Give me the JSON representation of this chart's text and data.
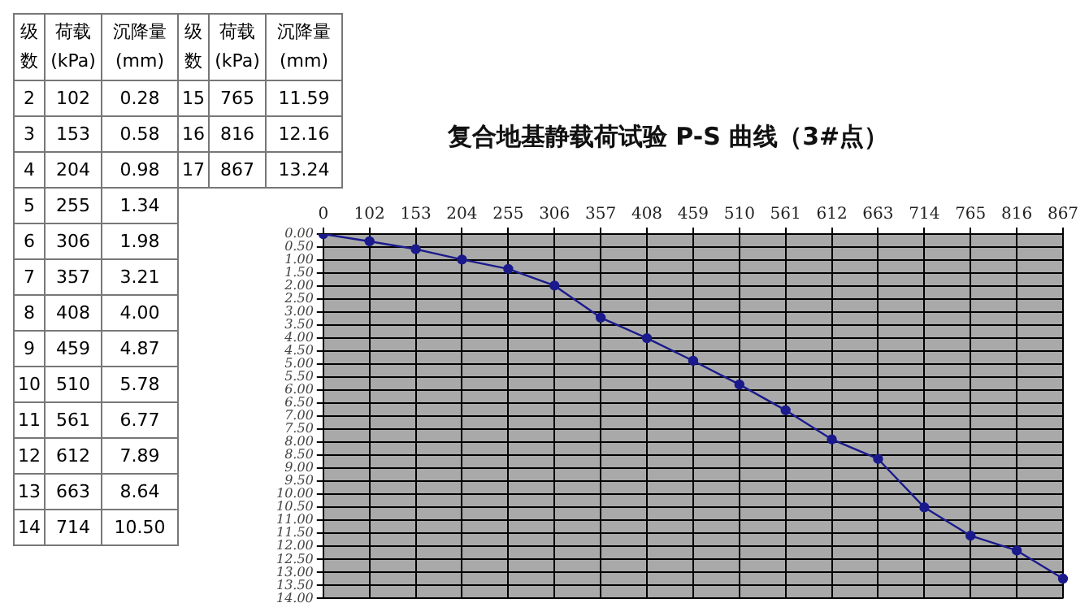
{
  "chart_data": {
    "type": "line",
    "title": "复合地基静载荷试验 P-S 曲线（3#点）",
    "categories": [
      "0",
      "102",
      "153",
      "204",
      "255",
      "306",
      "357",
      "408",
      "459",
      "510",
      "561",
      "612",
      "663",
      "714",
      "765",
      "816",
      "867"
    ],
    "series": [
      {
        "color": "#1a1a8c",
        "values": [
          0,
          0.28,
          0.58,
          0.98,
          1.34,
          1.98,
          3.21,
          4.0,
          4.87,
          5.78,
          6.77,
          7.89,
          8.64,
          10.5,
          11.59,
          12.16,
          13.24
        ]
      }
    ],
    "ylim": [
      14,
      0
    ],
    "yticks": [
      {
        "value": 0,
        "label": "0.00"
      },
      {
        "value": 0.5,
        "label": "0.50"
      },
      {
        "value": 1,
        "label": "1.00"
      },
      {
        "value": 1.5,
        "label": "1.50"
      },
      {
        "value": 2,
        "label": "2.00"
      },
      {
        "value": 2.5,
        "label": "2.50"
      },
      {
        "value": 3,
        "label": "3.00"
      },
      {
        "value": 3.5,
        "label": "3.50"
      },
      {
        "value": 4,
        "label": "4.00"
      },
      {
        "value": 4.5,
        "label": "4.50"
      },
      {
        "value": 5,
        "label": "5.00"
      },
      {
        "value": 5.5,
        "label": "5.50"
      },
      {
        "value": 6,
        "label": "6.00"
      },
      {
        "value": 6.5,
        "label": "6.50"
      },
      {
        "value": 7,
        "label": "7.00"
      },
      {
        "value": 7.5,
        "label": "7.50"
      },
      {
        "value": 8,
        "label": "8.00"
      },
      {
        "value": 8.5,
        "label": "8.50"
      },
      {
        "value": 9,
        "label": "9.00"
      },
      {
        "value": 9.5,
        "label": "9.50"
      },
      {
        "value": 10,
        "label": "10.00"
      },
      {
        "value": 10.5,
        "label": "10.50"
      },
      {
        "value": 11,
        "label": "11.00"
      },
      {
        "value": 11.5,
        "label": "11.50"
      },
      {
        "value": 12,
        "label": "12.00"
      },
      {
        "value": 12.5,
        "label": "12.50"
      },
      {
        "value": 13,
        "label": "13.00"
      },
      {
        "value": 13.5,
        "label": "13.50"
      },
      {
        "value": 14,
        "label": "14.00"
      }
    ],
    "value_labels": [
      null,
      "0.28",
      "0.58",
      "0.98",
      "1.34",
      "1.98",
      "3.21",
      "4.00",
      "4.87",
      "5.78",
      "6.77",
      "7.89",
      "8.64",
      "10.50",
      "11.59",
      "12.16",
      "13.24"
    ],
    "grid": true,
    "marker": "circle",
    "line_style": "solid",
    "annotations": [
      "级数",
      "荷载 (kPa)",
      "沉降量 (mm)",
      "2",
      "3",
      "4",
      "5",
      "6",
      "7",
      "8",
      "9",
      "10",
      "11",
      "12",
      "13",
      "14",
      "15",
      "16",
      "17"
    ]
  }
}
